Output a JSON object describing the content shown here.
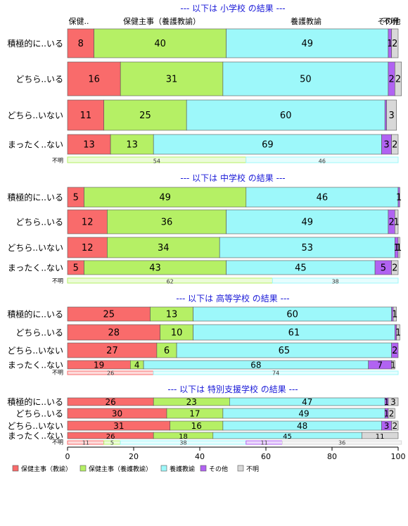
{
  "colors": {
    "series": [
      "#f96b6b",
      "#b5f065",
      "#9df8fa",
      "#b163f2",
      "#d8d8d8"
    ],
    "section_title": "#1a1ad8",
    "border": "#555555"
  },
  "legend": {
    "items": [
      "保健主事（教諭）",
      "保健主事（養護教諭）",
      "養護教諭",
      "その他",
      "不明"
    ]
  },
  "top_headers": [
    "保健..",
    "保健主事（養護教諭）",
    "養護教諭",
    "その他",
    "不明"
  ],
  "x_ticks": [
    "0",
    "20",
    "40",
    "60",
    "80",
    "100"
  ],
  "chart_data": {
    "type": "bar",
    "orientation": "horizontal",
    "stacked": true,
    "xlim": [
      0,
      100
    ],
    "series_names": [
      "保健主事（教諭）",
      "保健主事（養護教諭）",
      "養護教諭",
      "その他",
      "不明"
    ],
    "sections": [
      {
        "title": "--- 以下は 小学校 の結果 ---",
        "rows": [
          {
            "label": "積極的に..いる",
            "values": [
              8,
              40,
              49,
              1,
              2
            ],
            "texts": [
              "8",
              "40",
              "49",
              "1",
              "2"
            ]
          },
          {
            "label": "どちら..いる",
            "values": [
              16,
              31,
              50,
              2,
              2
            ],
            "texts": [
              "16",
              "31",
              "50",
              "2",
              "2"
            ]
          },
          {
            "label": "どちら..いない",
            "values": [
              11,
              25,
              60,
              0.5,
              3
            ],
            "texts": [
              "11",
              "25",
              "60",
              "",
              "3"
            ]
          },
          {
            "label": "まったく..ない",
            "values": [
              13,
              13,
              69,
              3,
              2
            ],
            "texts": [
              "13",
              "13",
              "69",
              "3",
              "2"
            ]
          }
        ],
        "unknown": {
          "label": "不明",
          "values": [
            0,
            54,
            46,
            0,
            0
          ],
          "texts": [
            "",
            "54",
            "46",
            "",
            ""
          ]
        }
      },
      {
        "title": "--- 以下は 中学校 の結果 ---",
        "rows": [
          {
            "label": "積極的に..いる",
            "values": [
              5,
              49,
              46,
              0.5,
              0
            ],
            "texts": [
              "5",
              "49",
              "46",
              "1",
              ""
            ]
          },
          {
            "label": "どちら..いる",
            "values": [
              12,
              36,
              49,
              2,
              1
            ],
            "texts": [
              "12",
              "36",
              "49",
              "2",
              "1"
            ]
          },
          {
            "label": "どちら..いない",
            "values": [
              12,
              34,
              53,
              1,
              0.5
            ],
            "texts": [
              "12",
              "34",
              "53",
              "1",
              "1"
            ]
          },
          {
            "label": "まったく..ない",
            "values": [
              5,
              43,
              45,
              5,
              2
            ],
            "texts": [
              "5",
              "43",
              "45",
              "5",
              "2"
            ]
          }
        ],
        "unknown": {
          "label": "不明",
          "values": [
            0,
            62,
            38,
            0,
            0
          ],
          "texts": [
            "",
            "62",
            "38",
            "",
            ""
          ]
        }
      },
      {
        "title": "--- 以下は 高等学校 の結果 ---",
        "rows": [
          {
            "label": "積極的に..いる",
            "values": [
              25,
              13,
              60,
              0.5,
              1
            ],
            "texts": [
              "25",
              "13",
              "60",
              "",
              "1"
            ]
          },
          {
            "label": "どちら..いる",
            "values": [
              28,
              10,
              61,
              0.5,
              1
            ],
            "texts": [
              "28",
              "10",
              "61",
              "",
              "1"
            ]
          },
          {
            "label": "どちら..いない",
            "values": [
              27,
              6,
              65,
              2,
              0
            ],
            "texts": [
              "27",
              "6",
              "65",
              "2",
              ""
            ]
          },
          {
            "label": "まったく..ない",
            "values": [
              19,
              4,
              68,
              7,
              1
            ],
            "texts": [
              "19",
              "4",
              "68",
              "7",
              "1"
            ]
          }
        ],
        "unknown": {
          "label": "不明",
          "values": [
            26,
            0,
            74,
            0,
            0
          ],
          "texts": [
            "26",
            "",
            "74",
            "",
            ""
          ]
        }
      },
      {
        "title": "--- 以下は 特別支援学校 の結果 ---",
        "rows": [
          {
            "label": "積極的に..いる",
            "values": [
              26,
              23,
              47,
              1,
              3
            ],
            "texts": [
              "26",
              "23",
              "47",
              "1",
              "3"
            ]
          },
          {
            "label": "どちら..いる",
            "values": [
              30,
              17,
              49,
              1,
              2
            ],
            "texts": [
              "30",
              "17",
              "49",
              "1",
              "2"
            ]
          },
          {
            "label": "どちら..いない",
            "values": [
              31,
              16,
              48,
              3,
              2
            ],
            "texts": [
              "31",
              "16",
              "48",
              "3",
              "2"
            ]
          },
          {
            "label": "まったく..ない",
            "values": [
              26,
              18,
              45,
              0,
              11
            ],
            "texts": [
              "26",
              "18",
              "45",
              "",
              "11"
            ]
          }
        ],
        "unknown": {
          "label": "不明",
          "values": [
            11,
            5,
            38,
            11,
            36
          ],
          "texts": [
            "11",
            "5",
            "38",
            "11",
            "36"
          ]
        }
      }
    ]
  }
}
